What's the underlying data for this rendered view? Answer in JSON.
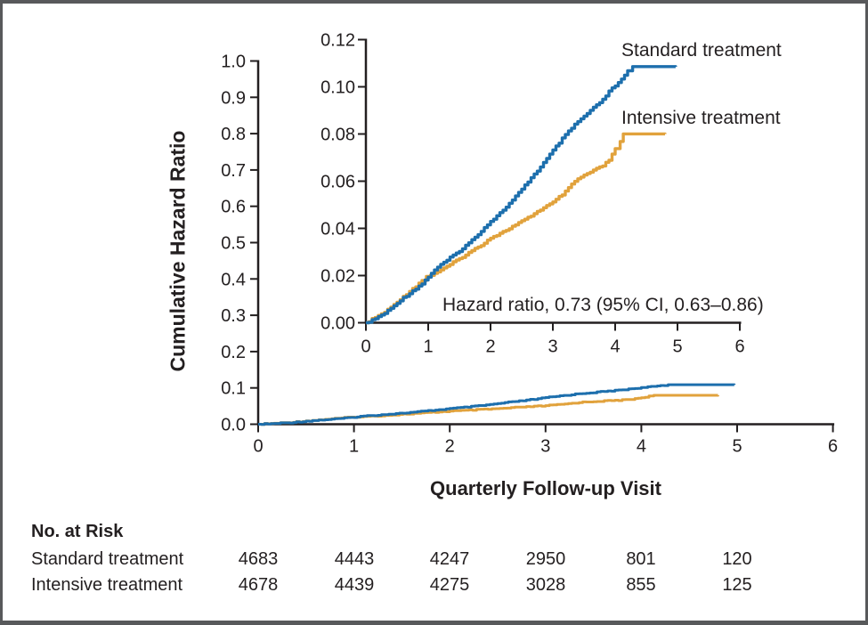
{
  "chart_data": {
    "type": "line",
    "description": "Cumulative hazard ratio over quarterly follow-up visits; large inset shows magnified y-axis view",
    "xlabel": "Quarterly Follow-up Visit",
    "ylabel": "Cumulative Hazard Ratio",
    "annotation": "Hazard ratio, 0.73 (95% CI, 0.63–0.86)",
    "legend_position": "labels-right-of-curves-in-inset",
    "main_axis": {
      "xlim": [
        0,
        6
      ],
      "ylim": [
        0,
        1.0
      ],
      "xticks": [
        "0",
        "1",
        "2",
        "3",
        "4",
        "5",
        "6"
      ],
      "yticks": [
        "0.0",
        "0.1",
        "0.2",
        "0.3",
        "0.4",
        "0.5",
        "0.6",
        "0.7",
        "0.8",
        "0.9",
        "1.0"
      ],
      "grid": false
    },
    "inset_axis": {
      "xlim": [
        0,
        6
      ],
      "ylim": [
        0,
        0.12
      ],
      "xticks": [
        "0",
        "1",
        "2",
        "3",
        "4",
        "5",
        "6"
      ],
      "yticks": [
        "0.00",
        "0.02",
        "0.04",
        "0.06",
        "0.08",
        "0.10",
        "0.12"
      ],
      "grid": false
    },
    "series": [
      {
        "name": "Standard treatment",
        "color": "#1d6fad",
        "points": [
          [
            0.0,
            0.0
          ],
          [
            0.1,
            0.001
          ],
          [
            0.2,
            0.0025
          ],
          [
            0.3,
            0.004
          ],
          [
            0.4,
            0.006
          ],
          [
            0.5,
            0.0085
          ],
          [
            0.6,
            0.0105
          ],
          [
            0.7,
            0.0125
          ],
          [
            0.8,
            0.0145
          ],
          [
            0.9,
            0.0165
          ],
          [
            1.0,
            0.0195
          ],
          [
            1.1,
            0.0225
          ],
          [
            1.25,
            0.0255
          ],
          [
            1.4,
            0.0285
          ],
          [
            1.55,
            0.0315
          ],
          [
            1.7,
            0.035
          ],
          [
            1.85,
            0.039
          ],
          [
            2.0,
            0.043
          ],
          [
            2.15,
            0.0465
          ],
          [
            2.3,
            0.0505
          ],
          [
            2.5,
            0.0565
          ],
          [
            2.65,
            0.0615
          ],
          [
            2.8,
            0.066
          ],
          [
            3.0,
            0.073
          ],
          [
            3.15,
            0.078
          ],
          [
            3.35,
            0.084
          ],
          [
            3.5,
            0.0875
          ],
          [
            3.65,
            0.091
          ],
          [
            3.8,
            0.0945
          ],
          [
            3.9,
            0.098
          ],
          [
            4.0,
            0.1005
          ],
          [
            4.1,
            0.103
          ],
          [
            4.2,
            0.1065
          ],
          [
            4.28,
            0.1085
          ],
          [
            4.97,
            0.1085
          ]
        ]
      },
      {
        "name": "Intensive treatment",
        "color": "#e1a23c",
        "points": [
          [
            0.0,
            0.0
          ],
          [
            0.1,
            0.0015
          ],
          [
            0.2,
            0.003
          ],
          [
            0.3,
            0.0045
          ],
          [
            0.4,
            0.0065
          ],
          [
            0.5,
            0.009
          ],
          [
            0.6,
            0.011
          ],
          [
            0.7,
            0.0135
          ],
          [
            0.8,
            0.0155
          ],
          [
            0.9,
            0.018
          ],
          [
            0.97,
            0.0195
          ],
          [
            1.1,
            0.021
          ],
          [
            1.25,
            0.023
          ],
          [
            1.4,
            0.0255
          ],
          [
            1.55,
            0.028
          ],
          [
            1.7,
            0.0305
          ],
          [
            1.85,
            0.033
          ],
          [
            2.0,
            0.036
          ],
          [
            2.2,
            0.0385
          ],
          [
            2.4,
            0.0415
          ],
          [
            2.6,
            0.0445
          ],
          [
            2.8,
            0.048
          ],
          [
            3.0,
            0.051
          ],
          [
            3.2,
            0.0555
          ],
          [
            3.35,
            0.06
          ],
          [
            3.5,
            0.0625
          ],
          [
            3.65,
            0.0645
          ],
          [
            3.8,
            0.0665
          ],
          [
            3.9,
            0.069
          ],
          [
            4.0,
            0.0735
          ],
          [
            4.08,
            0.077
          ],
          [
            4.13,
            0.08
          ],
          [
            4.8,
            0.08
          ]
        ]
      }
    ]
  },
  "at_risk": {
    "title": "No. at Risk",
    "rows": [
      {
        "label": "Standard treatment",
        "values": [
          4683,
          4443,
          4247,
          2950,
          801,
          120
        ]
      },
      {
        "label": "Intensive treatment",
        "values": [
          4678,
          4439,
          4275,
          3028,
          855,
          125
        ]
      }
    ]
  }
}
